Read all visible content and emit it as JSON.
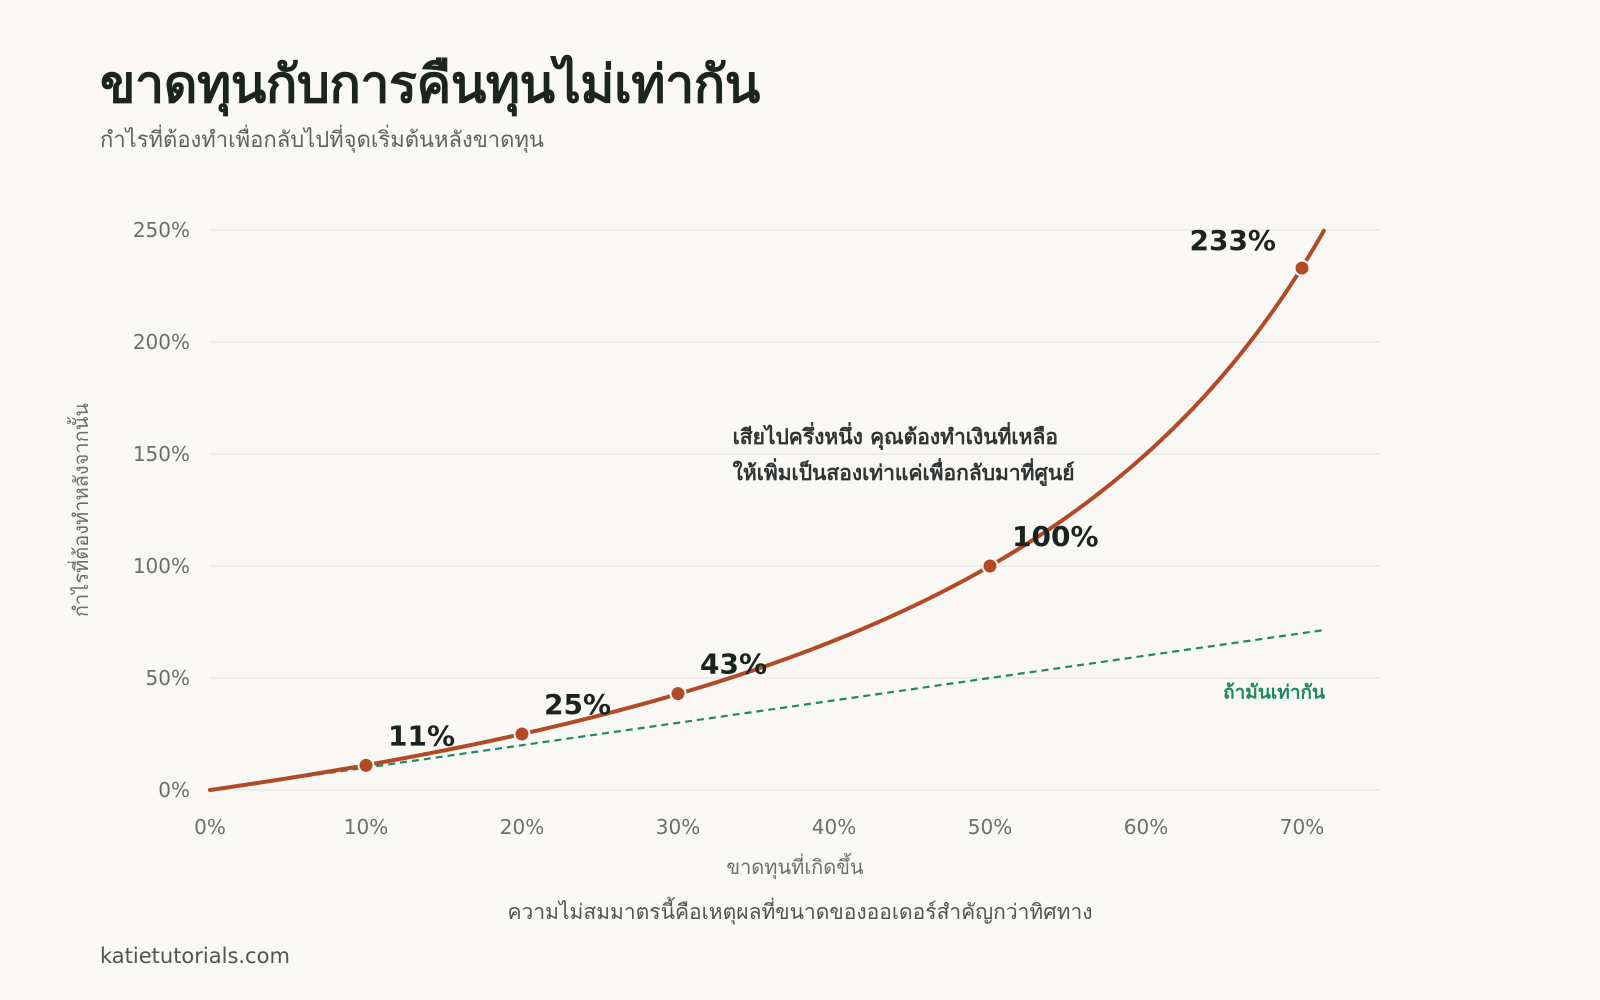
{
  "header": {
    "title": "ขาดทุนกับการคืนทุนไม่เท่ากัน",
    "subtitle": "กำไรที่ต้องทำเพื่อกลับไปที่จุดเริ่มต้นหลังขาดทุน"
  },
  "footer": {
    "note": "ความไม่สมมาตรนี้คือเหตุผลที่ขนาดของออเดอร์สำคัญกว่าทิศทาง",
    "source": "katietutorials.com"
  },
  "colors": {
    "curve": "#b24a25",
    "reference": "#1f8a62",
    "grid": "#e6e4df",
    "text": "#1b241f",
    "muted": "#6b706d"
  },
  "chart_data": {
    "type": "line",
    "xlabel": "ขาดทุนที่เกิดขึ้น",
    "ylabel": "กำไรที่ต้องทำหลังจากนั้น",
    "xlim": [
      0,
      75
    ],
    "ylim": [
      0,
      250
    ],
    "x_ticks": [
      {
        "value": 0,
        "label": "0%"
      },
      {
        "value": 10,
        "label": "10%"
      },
      {
        "value": 20,
        "label": "20%"
      },
      {
        "value": 30,
        "label": "30%"
      },
      {
        "value": 40,
        "label": "40%"
      },
      {
        "value": 50,
        "label": "50%"
      },
      {
        "value": 60,
        "label": "60%"
      },
      {
        "value": 70,
        "label": "70%"
      }
    ],
    "y_ticks": [
      {
        "value": 0,
        "label": "0%"
      },
      {
        "value": 50,
        "label": "50%"
      },
      {
        "value": 100,
        "label": "100%"
      },
      {
        "value": 150,
        "label": "150%"
      },
      {
        "value": 200,
        "label": "200%"
      },
      {
        "value": 250,
        "label": "250%"
      }
    ],
    "grid": true,
    "series": [
      {
        "formula": "100*x/(100-x)",
        "x_range": [
          0,
          71.4
        ],
        "style": "solid"
      },
      {
        "name": "ถ้ามันเท่ากัน",
        "formula": "x",
        "x_range": [
          0,
          71.4
        ],
        "style": "dashed"
      }
    ],
    "points": [
      {
        "x": 10,
        "y": 11,
        "label": "11%"
      },
      {
        "x": 20,
        "y": 25,
        "label": "25%"
      },
      {
        "x": 30,
        "y": 43,
        "label": "43%"
      },
      {
        "x": 50,
        "y": 100,
        "label": "100%"
      },
      {
        "x": 70,
        "y": 233,
        "label": "233%"
      }
    ],
    "annotation": {
      "lines": [
        "เสียไปครึ่งหนึ่ง คุณต้องทำเงินที่เหลือ",
        "ให้เพิ่มเป็นสองเท่าแค่เพื่อกลับมาที่ศูนย์"
      ],
      "x": 41,
      "y": 150
    }
  }
}
